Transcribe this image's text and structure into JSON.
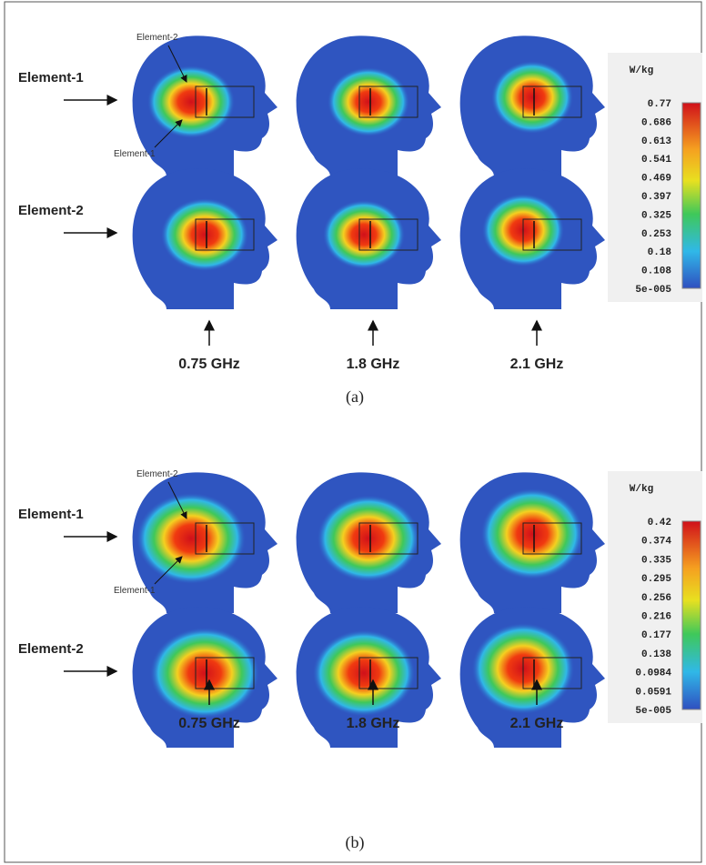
{
  "panels": [
    {
      "caption": "(a)",
      "row_labels": [
        "Element-1",
        "Element-2"
      ],
      "annotations": [
        "Element-2",
        "Element-1"
      ],
      "frequencies": [
        "0.75 GHz",
        "1.8 GHz",
        "2.1 GHz"
      ],
      "colorbar": {
        "unit": "W/kg",
        "ticks": [
          "0.77",
          "0.686",
          "0.613",
          "0.541",
          "0.469",
          "0.397",
          "0.325",
          "0.253",
          "0.18",
          "0.108",
          "5e-005"
        ]
      }
    },
    {
      "caption": "(b)",
      "row_labels": [
        "Element-1",
        "Element-2"
      ],
      "annotations": [
        "Element-2",
        "Element-1"
      ],
      "frequencies": [
        "0.75 GHz",
        "1.8 GHz",
        "2.1 GHz"
      ],
      "colorbar": {
        "unit": "W/kg",
        "ticks": [
          "0.42",
          "0.374",
          "0.335",
          "0.295",
          "0.256",
          "0.216",
          "0.177",
          "0.138",
          "0.0984",
          "0.0591",
          "5e-005"
        ]
      }
    }
  ]
}
